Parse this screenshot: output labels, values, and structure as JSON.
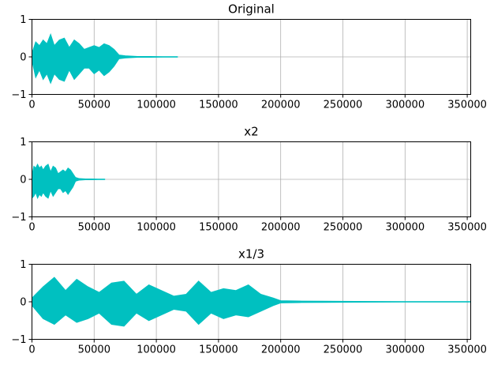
{
  "figure": {
    "background": "#ffffff",
    "line_color": "#00c0c0",
    "grid_color": "#b0b0b0"
  },
  "chart_data": [
    {
      "type": "line",
      "title": "Original",
      "xlim": [
        0,
        352800
      ],
      "ylim": [
        -1,
        1
      ],
      "xticks": [
        0,
        50000,
        100000,
        150000,
        200000,
        250000,
        300000,
        350000
      ],
      "xtick_labels": [
        "0",
        "50000",
        "100000",
        "150000",
        "200000",
        "250000",
        "300000",
        "350000"
      ],
      "yticks": [
        -1,
        0,
        1
      ],
      "ytick_labels": [
        "−1",
        "0",
        "1"
      ],
      "grid": true,
      "series": [
        {
          "color": "#00c0c0",
          "envelope": {
            "x": [
              0,
              3000,
              6000,
              9000,
              12000,
              15000,
              18000,
              22000,
              26000,
              30000,
              34000,
              38000,
              42000,
              46000,
              50000,
              54000,
              58000,
              62000,
              66000,
              70000,
              75000,
              85000,
              95000,
              105000,
              117000
            ],
            "upper": [
              0.1,
              0.4,
              0.3,
              0.45,
              0.35,
              0.6,
              0.3,
              0.45,
              0.5,
              0.25,
              0.45,
              0.35,
              0.2,
              0.25,
              0.3,
              0.25,
              0.35,
              0.3,
              0.2,
              0.05,
              0.03,
              0.01,
              0.01,
              0.005,
              0.005
            ],
            "lower": [
              -0.1,
              -0.55,
              -0.35,
              -0.6,
              -0.45,
              -0.7,
              -0.45,
              -0.6,
              -0.65,
              -0.35,
              -0.6,
              -0.45,
              -0.3,
              -0.3,
              -0.45,
              -0.35,
              -0.5,
              -0.4,
              -0.25,
              -0.05,
              -0.03,
              -0.01,
              -0.01,
              -0.005,
              -0.005
            ]
          }
        }
      ]
    },
    {
      "type": "line",
      "title": "x2",
      "xlim": [
        0,
        352800
      ],
      "ylim": [
        -1,
        1
      ],
      "xticks": [
        0,
        50000,
        100000,
        150000,
        200000,
        250000,
        300000,
        350000
      ],
      "xtick_labels": [
        "0",
        "50000",
        "100000",
        "150000",
        "200000",
        "250000",
        "300000",
        "350000"
      ],
      "yticks": [
        -1,
        0,
        1
      ],
      "ytick_labels": [
        "−1",
        "0",
        "1"
      ],
      "grid": true,
      "series": [
        {
          "color": "#00c0c0",
          "envelope": {
            "x": [
              0,
              1500,
              3000,
              4500,
              6000,
              7500,
              9000,
              11000,
              13000,
              15000,
              17000,
              19000,
              21000,
              23000,
              25000,
              27000,
              29000,
              31000,
              33000,
              35000,
              38000,
              43000,
              48000,
              53000,
              58500
            ],
            "upper": [
              0.1,
              0.35,
              0.3,
              0.4,
              0.3,
              0.35,
              0.25,
              0.35,
              0.4,
              0.2,
              0.35,
              0.3,
              0.15,
              0.2,
              0.25,
              0.2,
              0.3,
              0.25,
              0.15,
              0.05,
              0.02,
              0.01,
              0.01,
              0.005,
              0.005
            ],
            "lower": [
              -0.5,
              -0.45,
              -0.35,
              -0.5,
              -0.4,
              -0.45,
              -0.35,
              -0.45,
              -0.5,
              -0.3,
              -0.45,
              -0.35,
              -0.25,
              -0.25,
              -0.35,
              -0.3,
              -0.4,
              -0.3,
              -0.2,
              -0.05,
              -0.02,
              -0.01,
              -0.01,
              -0.005,
              -0.005
            ]
          }
        }
      ]
    },
    {
      "type": "line",
      "title": "x1/3",
      "xlim": [
        0,
        352800
      ],
      "ylim": [
        -1,
        1
      ],
      "xticks": [
        0,
        50000,
        100000,
        150000,
        200000,
        250000,
        300000,
        350000
      ],
      "xtick_labels": [
        "0",
        "50000",
        "100000",
        "150000",
        "200000",
        "250000",
        "300000",
        "350000"
      ],
      "yticks": [
        -1,
        0,
        1
      ],
      "ytick_labels": [
        "−1",
        "0",
        "1"
      ],
      "grid": true,
      "series": [
        {
          "color": "#00c0c0",
          "envelope": {
            "x": [
              0,
              9000,
              18000,
              27000,
              36000,
              45000,
              54000,
              64000,
              74000,
              84000,
              94000,
              104000,
              114000,
              124000,
              134000,
              144000,
              154000,
              164000,
              174000,
              184000,
              194000,
              200000,
              215000,
              235000,
              260000,
              300000,
              352800
            ],
            "upper": [
              0.1,
              0.4,
              0.65,
              0.3,
              0.6,
              0.4,
              0.25,
              0.5,
              0.55,
              0.2,
              0.45,
              0.3,
              0.15,
              0.2,
              0.55,
              0.25,
              0.35,
              0.3,
              0.45,
              0.2,
              0.1,
              0.03,
              0.02,
              0.015,
              0.01,
              0.005,
              0.005
            ],
            "lower": [
              -0.1,
              -0.45,
              -0.6,
              -0.35,
              -0.55,
              -0.45,
              -0.3,
              -0.6,
              -0.65,
              -0.3,
              -0.5,
              -0.35,
              -0.2,
              -0.25,
              -0.6,
              -0.3,
              -0.45,
              -0.35,
              -0.4,
              -0.25,
              -0.1,
              -0.03,
              -0.02,
              -0.015,
              -0.01,
              -0.005,
              -0.005
            ]
          }
        }
      ]
    }
  ]
}
